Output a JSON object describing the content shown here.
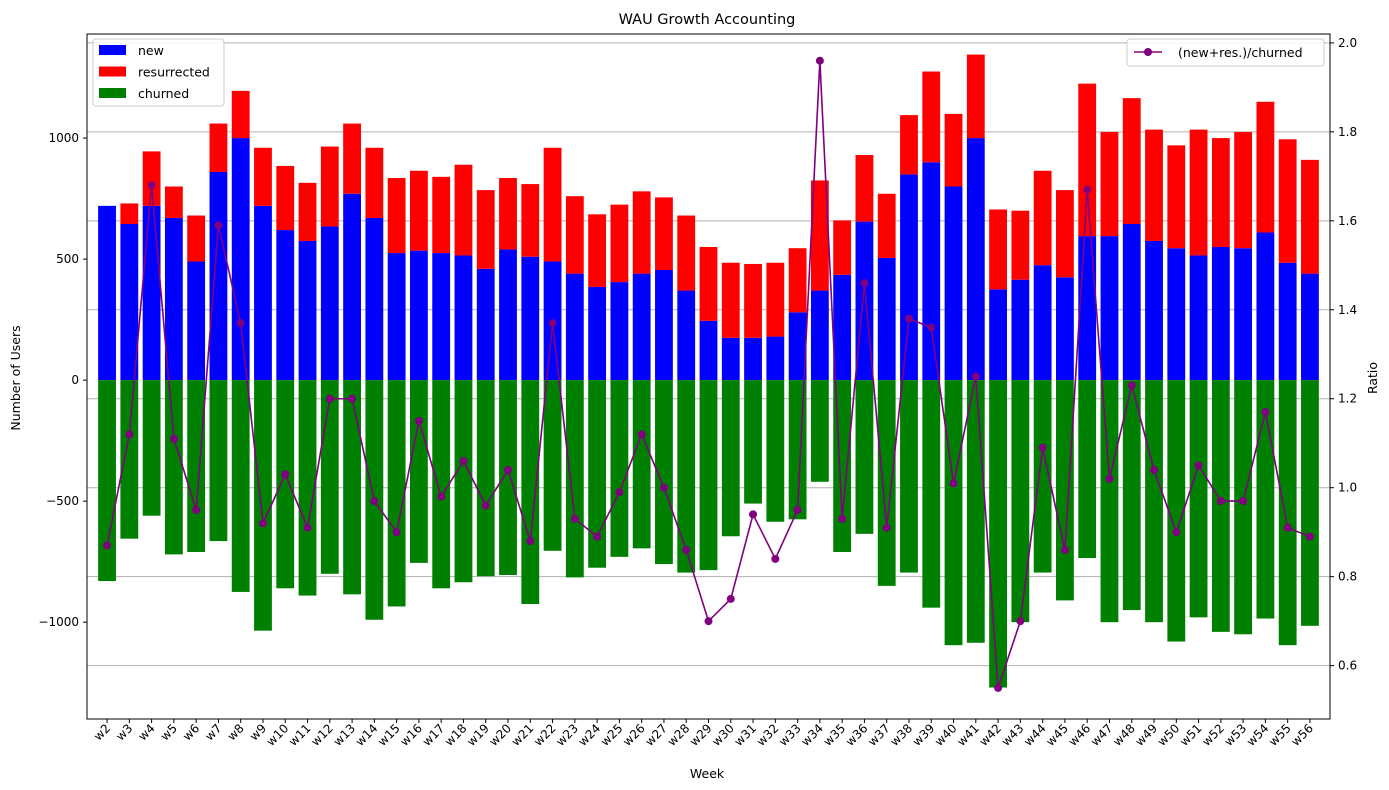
{
  "chart_data": {
    "type": "bar",
    "title": "WAU Growth Accounting",
    "xlabel": "Week",
    "ylabel": "Number of Users",
    "y2label": "Ratio",
    "ylim": [
      -1400,
      1430
    ],
    "y2lim": [
      0.48,
      2.02
    ],
    "yticks": [
      -1000,
      -500,
      0,
      500,
      1000
    ],
    "yticklabels": [
      "−1000",
      "−500",
      "0",
      "500",
      "1000"
    ],
    "y2ticks": [
      0.6,
      0.8,
      1.0,
      1.2,
      1.4,
      1.6,
      1.8,
      2.0
    ],
    "y2ticklabels": [
      "0.6",
      "0.8",
      "1.0",
      "1.2",
      "1.4",
      "1.6",
      "1.8",
      "2.0"
    ],
    "grid": "horizontal (right axis)",
    "legend_left_placement": "upper-left",
    "legend_right_placement": "upper-right",
    "categories": [
      "w2",
      "w3",
      "w4",
      "w5",
      "w6",
      "w7",
      "w8",
      "w9",
      "w10",
      "w11",
      "w12",
      "w13",
      "w14",
      "w15",
      "w16",
      "w17",
      "w18",
      "w19",
      "w20",
      "w21",
      "w22",
      "w23",
      "w24",
      "w25",
      "w26",
      "w27",
      "w28",
      "w29",
      "w30",
      "w31",
      "w32",
      "w33",
      "w34",
      "w35",
      "w36",
      "w37",
      "w38",
      "w39",
      "w40",
      "w41",
      "w42",
      "w43",
      "w44",
      "w45",
      "w46",
      "w47",
      "w48",
      "w49",
      "w50",
      "w51",
      "w52",
      "w53",
      "w54",
      "w55",
      "w56"
    ],
    "series": [
      {
        "name": "new",
        "color": "#0000ff",
        "values": [
          720,
          645,
          720,
          670,
          490,
          860,
          1000,
          720,
          620,
          575,
          635,
          770,
          670,
          525,
          535,
          525,
          515,
          460,
          540,
          510,
          490,
          440,
          385,
          405,
          440,
          455,
          370,
          245,
          175,
          175,
          180,
          280,
          370,
          435,
          655,
          505,
          850,
          900,
          800,
          1000,
          375,
          415,
          475,
          425,
          595,
          595,
          645,
          575,
          545,
          515,
          550,
          545,
          610,
          485,
          440
        ]
      },
      {
        "name": "resurrected",
        "color": "#ff0000",
        "values": [
          0,
          85,
          225,
          130,
          190,
          200,
          195,
          240,
          265,
          240,
          330,
          290,
          290,
          310,
          330,
          315,
          375,
          325,
          295,
          300,
          470,
          320,
          300,
          320,
          340,
          300,
          310,
          305,
          310,
          305,
          305,
          265,
          455,
          225,
          275,
          265,
          245,
          375,
          300,
          345,
          330,
          285,
          390,
          360,
          630,
          430,
          520,
          460,
          425,
          520,
          450,
          480,
          540,
          510,
          470
        ]
      },
      {
        "name": "churned",
        "color": "#008000",
        "values": [
          -830,
          -655,
          -560,
          -720,
          -710,
          -665,
          -875,
          -1035,
          -860,
          -890,
          -800,
          -885,
          -990,
          -935,
          -755,
          -860,
          -835,
          -810,
          -805,
          -925,
          -705,
          -815,
          -775,
          -730,
          -695,
          -760,
          -795,
          -785,
          -645,
          -510,
          -585,
          -575,
          -420,
          -710,
          -635,
          -850,
          -795,
          -940,
          -1095,
          -1085,
          -1270,
          -1000,
          -795,
          -910,
          -735,
          -1000,
          -950,
          -1000,
          -1080,
          -980,
          -1040,
          -1050,
          -985,
          -1095,
          -1015
        ]
      },
      {
        "name": "(new+res.)/churned",
        "color": "#800080",
        "axis": "right",
        "values": [
          0.87,
          1.12,
          1.68,
          1.11,
          0.95,
          1.59,
          1.37,
          0.92,
          1.03,
          0.91,
          1.2,
          1.2,
          0.97,
          0.9,
          1.15,
          0.98,
          1.06,
          0.96,
          1.04,
          0.88,
          1.37,
          0.93,
          0.89,
          0.99,
          1.12,
          1.0,
          0.86,
          0.7,
          0.75,
          0.94,
          0.84,
          0.95,
          1.96,
          0.93,
          1.46,
          0.91,
          1.38,
          1.36,
          1.01,
          1.25,
          0.55,
          0.7,
          1.09,
          0.86,
          1.67,
          1.02,
          1.23,
          1.04,
          0.9,
          1.05,
          0.97,
          0.97,
          1.17,
          0.91,
          0.89
        ]
      }
    ]
  }
}
